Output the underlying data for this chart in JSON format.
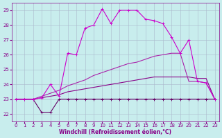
{
  "xlabel": "Windchill (Refroidissement éolien,°C)",
  "bg_color": "#c8eded",
  "grid_color": "#aab8cc",
  "xlim": [
    -0.5,
    23.5
  ],
  "ylim": [
    21.5,
    29.5
  ],
  "yticks": [
    22,
    23,
    24,
    25,
    26,
    27,
    28,
    29
  ],
  "xticks": [
    0,
    1,
    2,
    3,
    4,
    5,
    6,
    7,
    8,
    9,
    10,
    11,
    12,
    13,
    14,
    15,
    16,
    17,
    18,
    19,
    20,
    21,
    22,
    23
  ],
  "curve1_x": [
    0,
    1,
    2,
    3,
    4,
    5,
    6,
    7,
    8,
    9,
    10,
    11,
    12,
    13,
    14,
    15,
    16,
    17,
    18,
    19,
    20,
    21,
    22,
    23
  ],
  "curve1_y": [
    23.0,
    23.0,
    23.0,
    22.1,
    22.1,
    23.0,
    23.0,
    23.0,
    23.0,
    23.0,
    23.0,
    23.0,
    23.0,
    23.0,
    23.0,
    23.0,
    23.0,
    23.0,
    23.0,
    23.0,
    23.0,
    23.0,
    23.0,
    23.0
  ],
  "curve2_x": [
    0,
    1,
    2,
    3,
    4,
    5,
    6,
    7,
    8,
    9,
    10,
    11,
    12,
    13,
    14,
    15,
    16,
    17,
    18,
    19,
    20,
    21,
    22,
    23
  ],
  "curve2_y": [
    23.0,
    23.0,
    23.0,
    23.1,
    23.2,
    23.3,
    23.5,
    23.6,
    23.7,
    23.8,
    23.9,
    24.0,
    24.1,
    24.2,
    24.3,
    24.4,
    24.5,
    24.5,
    24.5,
    24.5,
    24.5,
    24.4,
    24.4,
    23.0
  ],
  "curve3_x": [
    0,
    1,
    2,
    3,
    4,
    5,
    6,
    7,
    8,
    9,
    10,
    11,
    12,
    13,
    14,
    15,
    16,
    17,
    18,
    19,
    20,
    21,
    22,
    23
  ],
  "curve3_y": [
    23.0,
    23.0,
    23.0,
    23.2,
    23.4,
    23.6,
    23.9,
    24.1,
    24.3,
    24.6,
    24.8,
    25.0,
    25.2,
    25.4,
    25.5,
    25.7,
    25.9,
    26.0,
    26.1,
    26.1,
    24.2,
    24.2,
    24.1,
    23.0
  ],
  "curve4_x": [
    0,
    1,
    2,
    3,
    4,
    5,
    6,
    7,
    8,
    9,
    10,
    11,
    12,
    13,
    14,
    15,
    16,
    17,
    18,
    19,
    20,
    21,
    22,
    23
  ],
  "curve4_y": [
    23.0,
    23.0,
    23.0,
    23.1,
    24.0,
    23.2,
    26.1,
    26.0,
    27.8,
    28.0,
    29.1,
    28.1,
    29.0,
    29.0,
    29.0,
    28.4,
    28.3,
    28.1,
    27.2,
    26.1,
    27.0,
    24.2,
    24.1,
    23.0
  ],
  "color1": "#660066",
  "color2": "#880088",
  "color3": "#aa22aa",
  "color4": "#cc00cc",
  "figsize": [
    3.2,
    2.0
  ],
  "dpi": 100,
  "label_fontsize": 5.5,
  "tick_fontsize": 5
}
